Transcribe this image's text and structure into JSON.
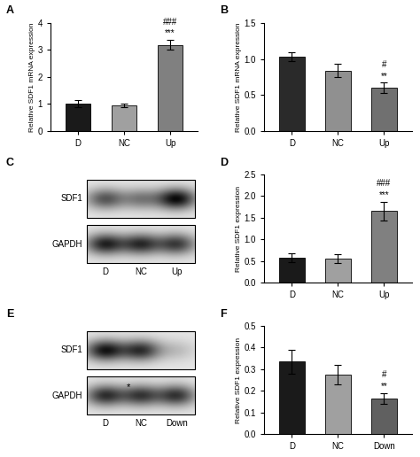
{
  "chart_data": [
    {
      "type": "bar",
      "title": "A",
      "categories": [
        "D",
        "NC",
        "Up"
      ],
      "values": [
        1.02,
        0.94,
        3.18
      ],
      "errors": [
        0.12,
        0.07,
        0.18
      ],
      "colors": [
        "#1a1a1a",
        "#a0a0a0",
        "#808080"
      ],
      "y_label": "Relative SDF1 mRNA expression",
      "ylim": [
        0,
        4
      ],
      "yticks": [
        0,
        1,
        2,
        3,
        4
      ],
      "annotations": [
        {
          "text": "***",
          "x": "Up"
        },
        {
          "text": "###",
          "x": "Up"
        }
      ]
    },
    {
      "type": "bar",
      "title": "B",
      "categories": [
        "D",
        "NC",
        "Up"
      ],
      "values": [
        1.03,
        0.84,
        0.6
      ],
      "errors": [
        0.06,
        0.09,
        0.07
      ],
      "colors": [
        "#2a2a2a",
        "#909090",
        "#707070"
      ],
      "y_label": "Relative SDF1 mRNA expression",
      "ylim": [
        0.0,
        1.5
      ],
      "yticks": [
        0.0,
        0.5,
        1.0,
        1.5
      ],
      "annotations": [
        {
          "text": "**",
          "x": "Up"
        },
        {
          "text": "#",
          "x": "Up"
        }
      ]
    },
    {
      "type": "blot",
      "title": "C",
      "categories": [
        "D",
        "NC",
        "Up"
      ],
      "series": [
        {
          "name": "SDF1",
          "values": [
            0.55,
            0.4,
            0.85
          ]
        },
        {
          "name": "GAPDH",
          "values": [
            0.75,
            0.7,
            0.65
          ]
        }
      ]
    },
    {
      "type": "bar",
      "title": "D",
      "categories": [
        "D",
        "NC",
        "Up"
      ],
      "values": [
        0.58,
        0.55,
        1.65
      ],
      "errors": [
        0.1,
        0.1,
        0.22
      ],
      "colors": [
        "#1a1a1a",
        "#a0a0a0",
        "#808080"
      ],
      "y_label": "Relative SDF1 expression",
      "ylim": [
        0.0,
        2.5
      ],
      "yticks": [
        0.0,
        0.5,
        1.0,
        1.5,
        2.0,
        2.5
      ],
      "annotations": [
        {
          "text": "***",
          "x": "Up"
        },
        {
          "text": "###",
          "x": "Up"
        }
      ]
    },
    {
      "type": "blot",
      "title": "E",
      "categories": [
        "D",
        "NC",
        "Down"
      ],
      "series": [
        {
          "name": "SDF1",
          "values": [
            0.8,
            0.7,
            0.15
          ]
        },
        {
          "name": "GAPDH",
          "values": [
            0.7,
            0.65,
            0.68
          ]
        }
      ],
      "annotations": [
        {
          "text": "*",
          "x": "NC",
          "series": "GAPDH"
        }
      ]
    },
    {
      "type": "bar",
      "title": "F",
      "categories": [
        "D",
        "NC",
        "Down"
      ],
      "values": [
        0.335,
        0.275,
        0.165
      ],
      "errors": [
        0.055,
        0.045,
        0.025
      ],
      "colors": [
        "#1a1a1a",
        "#a0a0a0",
        "#606060"
      ],
      "y_label": "Relative SDF1 expression",
      "ylim": [
        0.0,
        0.5
      ],
      "yticks": [
        0.0,
        0.1,
        0.2,
        0.3,
        0.4,
        0.5
      ],
      "annotations": [
        {
          "text": "**",
          "x": "Down"
        },
        {
          "text": "#",
          "x": "Down"
        }
      ]
    }
  ]
}
